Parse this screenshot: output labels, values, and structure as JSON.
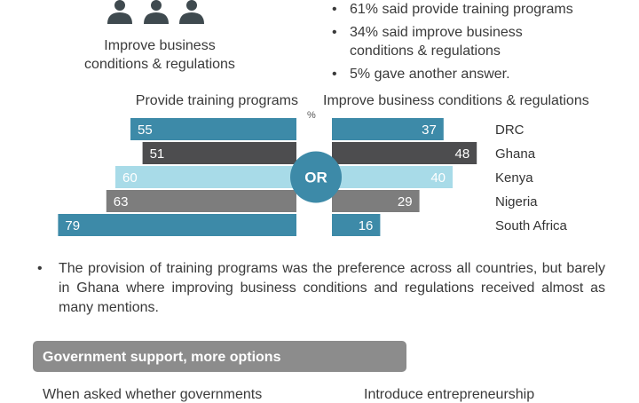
{
  "top": {
    "improve_label": "Improve business\nconditions  & regulations",
    "bullet_char": "•",
    "bullets": [
      "61% said  provide training  programs",
      "34% said improve business\nconditions  & regulations",
      "5% gave another answer."
    ]
  },
  "chart_data": {
    "type": "bar",
    "layout": "butterfly",
    "left_title": "Provide training programs",
    "right_title": "Improve business conditions & regulations",
    "unit_label": "%",
    "center_label": "OR",
    "categories": [
      "DRC",
      "Ghana",
      "Kenya",
      "Nigeria",
      "South Africa"
    ],
    "series": [
      {
        "name": "Provide training programs",
        "side": "left",
        "values": [
          55,
          51,
          60,
          63,
          79
        ]
      },
      {
        "name": "Improve business conditions & regulations",
        "side": "right",
        "values": [
          37,
          48,
          40,
          29,
          16
        ]
      }
    ],
    "colors": [
      "#3d8aa8",
      "#4d4d4f",
      "#a8dbe8",
      "#7d7d7d",
      "#3d8aa8"
    ],
    "label_colors": [
      "#ffffff",
      "#ffffff",
      "#ffffff",
      "#ffffff",
      "#ffffff"
    ],
    "center_color": "#3d8aa8"
  },
  "note": {
    "bullet_char": "•",
    "text": "The provision of training  programs was the preference across all countries, but barely in Ghana where improving business conditions  and regulations received almost as many mentions."
  },
  "section": {
    "title": "Government support, more options",
    "bar_color": "#8c8c8c"
  },
  "cutoff": {
    "left": "When asked whether governments",
    "right": "Introduce  entrepreneurship"
  }
}
